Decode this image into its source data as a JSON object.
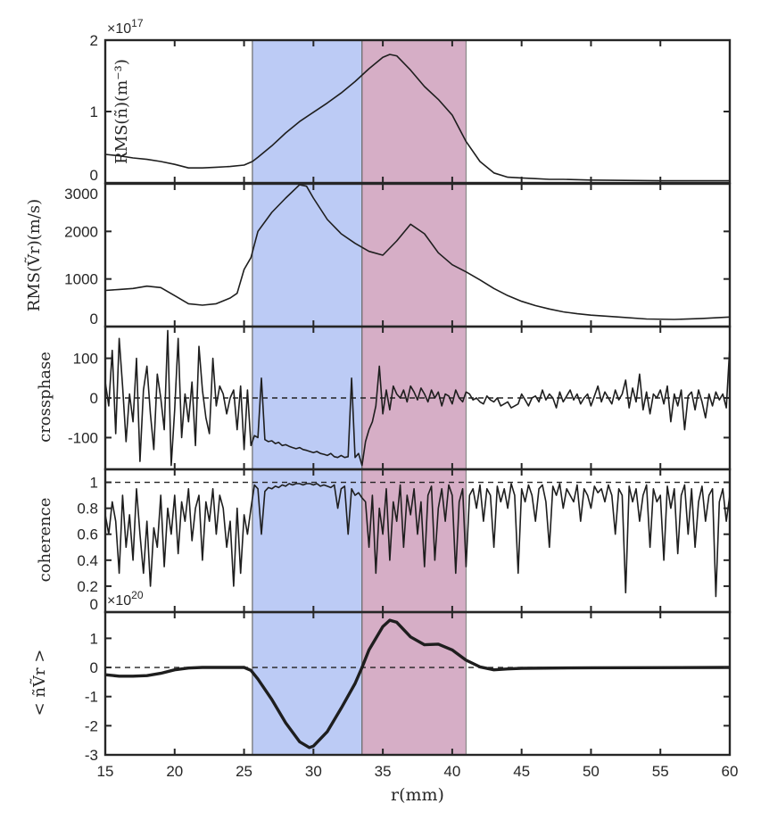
{
  "chart_data": {
    "type": "line",
    "xlabel": "r(mm)",
    "xlim": [
      15,
      60
    ],
    "xticks": [
      "15",
      "20",
      "25",
      "30",
      "35",
      "40",
      "45",
      "50",
      "55",
      "60"
    ],
    "bands": [
      {
        "name": "blue-region",
        "from": 25.6,
        "to": 33.5,
        "color": "#bccbf5"
      },
      {
        "name": "pink-region",
        "from": 33.5,
        "to": 41.0,
        "color": "#d6aec6"
      }
    ],
    "panels": [
      {
        "name": "rms-density",
        "ylabel": "RMS(ñ)(m⁻³)",
        "exponent": "×10",
        "exponent_power": "17",
        "ylim": [
          0,
          2
        ],
        "yticks": [
          0,
          1,
          2
        ],
        "ref_line": null,
        "x": [
          15,
          16,
          17,
          18,
          19,
          20,
          21,
          22,
          23,
          24,
          25,
          25.6,
          26,
          27,
          28,
          29,
          30,
          31,
          32,
          33,
          34,
          35,
          35.5,
          36,
          37,
          38,
          39,
          40,
          41,
          42,
          43,
          44,
          45,
          46,
          47,
          48,
          50,
          55,
          60
        ],
        "values": [
          0.4,
          0.38,
          0.35,
          0.33,
          0.3,
          0.26,
          0.21,
          0.21,
          0.22,
          0.23,
          0.25,
          0.3,
          0.36,
          0.52,
          0.7,
          0.86,
          0.99,
          1.12,
          1.26,
          1.42,
          1.6,
          1.76,
          1.8,
          1.78,
          1.58,
          1.35,
          1.17,
          0.95,
          0.58,
          0.3,
          0.14,
          0.08,
          0.07,
          0.06,
          0.05,
          0.05,
          0.04,
          0.03,
          0.03
        ]
      },
      {
        "name": "rms-velocity",
        "ylabel": "RMS(Ṽr)(m/s)",
        "ylim": [
          0,
          3000
        ],
        "yticks": [
          0,
          1000,
          2000,
          3000
        ],
        "ref_line": null,
        "x": [
          15,
          16,
          17,
          18,
          19,
          20,
          21,
          22,
          23,
          24,
          24.5,
          25,
          25.5,
          26,
          27,
          28,
          29,
          29.5,
          30,
          31,
          32,
          33,
          34,
          35,
          36,
          37,
          38,
          39,
          40,
          41,
          42,
          43,
          44,
          45,
          46,
          47,
          48,
          49,
          50,
          52,
          54,
          56,
          58,
          60
        ],
        "values": [
          760,
          780,
          800,
          850,
          820,
          650,
          480,
          450,
          480,
          600,
          700,
          1200,
          1450,
          2000,
          2400,
          2700,
          2980,
          2950,
          2700,
          2250,
          1950,
          1750,
          1580,
          1500,
          1800,
          2150,
          1950,
          1550,
          1300,
          1150,
          980,
          800,
          650,
          530,
          440,
          370,
          310,
          270,
          240,
          200,
          160,
          150,
          170,
          200
        ]
      },
      {
        "name": "crossphase",
        "ylabel": "crossphase",
        "ylim": [
          -180,
          180
        ],
        "yticks": [
          -100,
          0,
          100
        ],
        "ref_line": 0,
        "x_start": 15,
        "x_step": 0.25,
        "values": [
          40,
          -20,
          120,
          -90,
          150,
          30,
          -110,
          10,
          -60,
          100,
          -160,
          20,
          80,
          -40,
          -130,
          60,
          0,
          -80,
          170,
          -170,
          -30,
          150,
          -100,
          10,
          -60,
          40,
          -120,
          130,
          20,
          -50,
          -90,
          100,
          -20,
          30,
          10,
          -40,
          0,
          20,
          -80,
          30,
          -130,
          20,
          -120,
          -95,
          -100,
          50,
          -105,
          -110,
          -108,
          -115,
          -112,
          -120,
          -118,
          -122,
          -125,
          -128,
          -125,
          -130,
          -132,
          -135,
          -138,
          -135,
          -140,
          -142,
          -145,
          -140,
          -148,
          -150,
          -145,
          -150,
          -148,
          50,
          -150,
          -140,
          -170,
          -110,
          -80,
          -60,
          -20,
          80,
          -40,
          20,
          -30,
          30,
          10,
          0,
          20,
          -10,
          30,
          15,
          -5,
          25,
          10,
          -10,
          20,
          0,
          15,
          -20,
          10,
          5,
          -15,
          20,
          0,
          -10,
          15,
          10,
          -5,
          0,
          -10,
          -15,
          5,
          -5,
          -10,
          0,
          -20,
          -15,
          -10,
          -25,
          -20,
          -15,
          10,
          -5,
          -20,
          0,
          5,
          -10,
          20,
          -5,
          10,
          0,
          -25,
          15,
          -10,
          5,
          20,
          -5,
          10,
          -15,
          0,
          10,
          -20,
          5,
          30,
          -10,
          15,
          0,
          -15,
          20,
          -5,
          10,
          45,
          -25,
          25,
          -10,
          60,
          -30,
          15,
          -40,
          10,
          0,
          20,
          -15,
          30,
          -60,
          10,
          -20,
          20,
          -80,
          5,
          15,
          -30,
          20,
          -10,
          -50,
          10,
          -20,
          15,
          -5,
          10,
          -25,
          130
        ]
      },
      {
        "name": "coherence",
        "ylabel": "coherence",
        "ylim": [
          0,
          1.1
        ],
        "yticks": [
          0,
          0.2,
          0.4,
          0.6,
          0.8,
          1
        ],
        "ref_line": 1,
        "x_start": 15,
        "x_step": 0.25,
        "values": [
          0.75,
          0.6,
          0.85,
          0.7,
          0.3,
          0.9,
          0.5,
          0.75,
          0.4,
          0.95,
          0.6,
          0.3,
          0.7,
          0.2,
          0.65,
          0.5,
          0.9,
          0.35,
          0.8,
          0.6,
          0.9,
          0.45,
          0.85,
          0.7,
          0.95,
          0.55,
          0.8,
          0.9,
          0.4,
          0.85,
          0.7,
          0.95,
          0.6,
          0.9,
          0.8,
          0.5,
          0.7,
          0.2,
          0.8,
          0.3,
          0.75,
          0.6,
          0.8,
          0.98,
          0.95,
          0.6,
          0.93,
          0.96,
          0.95,
          0.97,
          0.96,
          0.98,
          0.97,
          0.99,
          0.98,
          0.99,
          0.99,
          0.98,
          0.99,
          0.99,
          0.98,
          0.99,
          0.97,
          0.98,
          0.97,
          0.96,
          0.98,
          0.8,
          0.95,
          0.97,
          0.6,
          0.95,
          0.9,
          0.92,
          0.88,
          0.85,
          0.5,
          0.9,
          0.3,
          0.8,
          0.6,
          0.95,
          0.4,
          0.85,
          0.7,
          0.98,
          0.5,
          0.9,
          0.75,
          0.95,
          0.6,
          0.85,
          0.35,
          0.9,
          0.97,
          0.4,
          0.8,
          0.95,
          0.7,
          0.98,
          0.9,
          0.3,
          0.85,
          0.95,
          0.35,
          0.9,
          0.95,
          0.8,
          0.98,
          0.7,
          0.95,
          0.9,
          0.5,
          0.97,
          0.85,
          0.95,
          0.8,
          0.99,
          0.9,
          0.3,
          0.95,
          0.85,
          0.98,
          0.9,
          0.7,
          0.95,
          0.98,
          0.85,
          0.5,
          0.97,
          0.9,
          0.99,
          0.8,
          0.95,
          0.9,
          0.85,
          0.98,
          0.7,
          0.95,
          0.9,
          0.8,
          0.97,
          0.92,
          0.95,
          0.85,
          0.98,
          0.9,
          0.6,
          0.95,
          0.9,
          0.15,
          0.97,
          0.85,
          0.95,
          0.7,
          0.9,
          0.98,
          0.5,
          0.95,
          0.85,
          0.9,
          0.4,
          0.97,
          0.8,
          0.95,
          0.45,
          0.9,
          0.98,
          0.6,
          0.95,
          0.5,
          0.85,
          0.97,
          0.7,
          0.9,
          0.95,
          0.12,
          0.85,
          0.95,
          0.7,
          0.9
        ]
      },
      {
        "name": "flux",
        "ylabel": "< ñṼr >",
        "exponent": "×10",
        "exponent_power": "20",
        "ylim": [
          -3,
          1.9
        ],
        "yticks": [
          -3,
          -2,
          -1,
          0,
          1
        ],
        "ref_line": 0,
        "x": [
          15,
          16,
          17,
          18,
          19,
          20,
          21,
          22,
          24,
          25,
          25.5,
          26,
          27,
          28,
          29,
          29.7,
          30,
          31,
          32,
          33,
          33.5,
          34,
          35,
          35.5,
          36,
          37,
          38,
          39,
          40,
          41,
          42,
          43,
          44,
          45,
          50,
          60
        ],
        "values": [
          -0.25,
          -0.3,
          -0.3,
          -0.28,
          -0.2,
          -0.08,
          -0.02,
          0,
          0,
          0,
          -0.1,
          -0.4,
          -1.1,
          -1.9,
          -2.55,
          -2.75,
          -2.7,
          -2.2,
          -1.4,
          -0.55,
          0,
          0.6,
          1.4,
          1.62,
          1.55,
          1.05,
          0.78,
          0.8,
          0.6,
          0.25,
          0.02,
          -0.08,
          -0.05,
          -0.03,
          -0.01,
          0
        ]
      }
    ]
  }
}
